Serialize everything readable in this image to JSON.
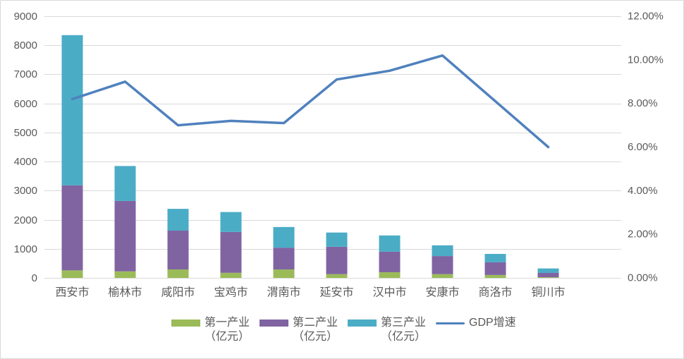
{
  "chart_data": {
    "type": "bar",
    "stacked": true,
    "categories": [
      "西安市",
      "榆林市",
      "咸阳市",
      "宝鸡市",
      "渭南市",
      "延安市",
      "汉中市",
      "安康市",
      "商洛市",
      "铜川市"
    ],
    "series": [
      {
        "name": "第一产业（亿元）",
        "type": "bar",
        "axis": "left",
        "color": "#9BBB59",
        "values": [
          259,
          225,
          290,
          175,
          290,
          130,
          195,
          130,
          100,
          25
        ]
      },
      {
        "name": "第二产业（亿元）",
        "type": "bar",
        "axis": "left",
        "color": "#8064A2",
        "values": [
          2926,
          2421,
          1335,
          1405,
          750,
          940,
          705,
          620,
          435,
          145
        ]
      },
      {
        "name": "第三产业（亿元）",
        "type": "bar",
        "axis": "left",
        "color": "#4BACC6",
        "values": [
          5165,
          1202,
          750,
          685,
          710,
          490,
          560,
          370,
          290,
          155
        ]
      },
      {
        "name": "GDP增速",
        "type": "line",
        "axis": "right",
        "color": "#4F81BD",
        "values": [
          8.2,
          9.0,
          7.0,
          7.2,
          7.1,
          9.1,
          9.5,
          10.2,
          8.1,
          6.0
        ]
      }
    ],
    "y_left": {
      "min": 0,
      "max": 9000,
      "tick_labels": [
        "0",
        "1000",
        "2000",
        "3000",
        "4000",
        "5000",
        "6000",
        "7000",
        "8000",
        "9000"
      ]
    },
    "y_right": {
      "min": 0,
      "max": 12,
      "tick_labels": [
        "0.00%",
        "2.00%",
        "4.00%",
        "6.00%",
        "8.00%",
        "10.00%",
        "12.00%"
      ]
    },
    "grid": true,
    "legend": "bottom"
  }
}
